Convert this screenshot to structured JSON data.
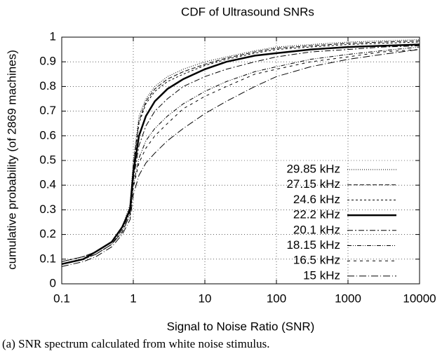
{
  "chart_data": {
    "type": "line",
    "title": "CDF of Ultrasound SNRs",
    "xlabel": "Signal to Noise Ratio (SNR)",
    "ylabel": "cumulative probability (of 2869 machines)",
    "caption": "(a) SNR spectrum calculated from white noise stimulus.",
    "xscale": "log",
    "grid": true,
    "legend": "lower right",
    "xlim": [
      0.1,
      10000
    ],
    "xticks": [
      0.1,
      1,
      10,
      100,
      1000,
      10000
    ],
    "ylim": [
      0,
      1
    ],
    "yticks": [
      0,
      0.1,
      0.2,
      0.3,
      0.4,
      0.5,
      0.6,
      0.7,
      0.8,
      0.9,
      1
    ],
    "x": [
      0.1,
      0.2,
      0.3,
      0.5,
      0.7,
      0.9,
      1,
      1.2,
      1.5,
      2,
      3,
      5,
      10,
      20,
      50,
      100,
      300,
      1000,
      3000,
      10000
    ],
    "series": [
      {
        "name": "29.85 kHz",
        "color": "#000000",
        "dash": "1,2",
        "width": 1,
        "values": [
          0.09,
          0.11,
          0.13,
          0.17,
          0.23,
          0.32,
          0.5,
          0.68,
          0.75,
          0.8,
          0.84,
          0.87,
          0.9,
          0.92,
          0.945,
          0.96,
          0.97,
          0.98,
          0.985,
          0.99
        ]
      },
      {
        "name": "27.15 kHz",
        "color": "#000000",
        "dash": "6,3",
        "width": 1,
        "values": [
          0.09,
          0.11,
          0.13,
          0.17,
          0.23,
          0.31,
          0.48,
          0.66,
          0.74,
          0.79,
          0.83,
          0.86,
          0.89,
          0.915,
          0.94,
          0.955,
          0.965,
          0.975,
          0.98,
          0.985
        ]
      },
      {
        "name": "24.6 kHz",
        "color": "#000000",
        "dash": "3,3",
        "width": 1,
        "values": [
          0.09,
          0.11,
          0.13,
          0.17,
          0.23,
          0.31,
          0.47,
          0.65,
          0.73,
          0.78,
          0.82,
          0.85,
          0.885,
          0.91,
          0.935,
          0.95,
          0.96,
          0.97,
          0.975,
          0.98
        ]
      },
      {
        "name": "22.2 kHz",
        "color": "#000000",
        "dash": "none",
        "width": 2.5,
        "values": [
          0.08,
          0.1,
          0.13,
          0.17,
          0.23,
          0.3,
          0.45,
          0.6,
          0.68,
          0.74,
          0.79,
          0.83,
          0.87,
          0.9,
          0.925,
          0.935,
          0.95,
          0.96,
          0.965,
          0.97
        ]
      },
      {
        "name": "20.1 kHz",
        "color": "#000000",
        "dash": "8,3,2,3",
        "width": 1,
        "values": [
          0.08,
          0.1,
          0.12,
          0.16,
          0.22,
          0.29,
          0.42,
          0.56,
          0.64,
          0.7,
          0.75,
          0.8,
          0.84,
          0.87,
          0.9,
          0.92,
          0.94,
          0.95,
          0.96,
          0.965
        ]
      },
      {
        "name": "18.15 kHz",
        "color": "#000000",
        "dash": "6,2,1,2,1,2",
        "width": 1,
        "values": [
          0.08,
          0.1,
          0.12,
          0.16,
          0.21,
          0.28,
          0.4,
          0.51,
          0.58,
          0.63,
          0.68,
          0.73,
          0.78,
          0.82,
          0.86,
          0.88,
          0.91,
          0.93,
          0.945,
          0.96
        ]
      },
      {
        "name": "16.5 kHz",
        "color": "#000000",
        "dash": "4,5",
        "width": 1,
        "values": [
          0.08,
          0.1,
          0.12,
          0.16,
          0.21,
          0.28,
          0.39,
          0.49,
          0.55,
          0.6,
          0.65,
          0.71,
          0.76,
          0.8,
          0.85,
          0.87,
          0.9,
          0.92,
          0.94,
          0.95
        ]
      },
      {
        "name": "15 kHz",
        "color": "#000000",
        "dash": "10,3,1,3",
        "width": 1,
        "values": [
          0.07,
          0.09,
          0.11,
          0.15,
          0.2,
          0.26,
          0.36,
          0.44,
          0.49,
          0.53,
          0.58,
          0.63,
          0.69,
          0.74,
          0.8,
          0.84,
          0.88,
          0.91,
          0.93,
          0.95
        ]
      }
    ]
  }
}
